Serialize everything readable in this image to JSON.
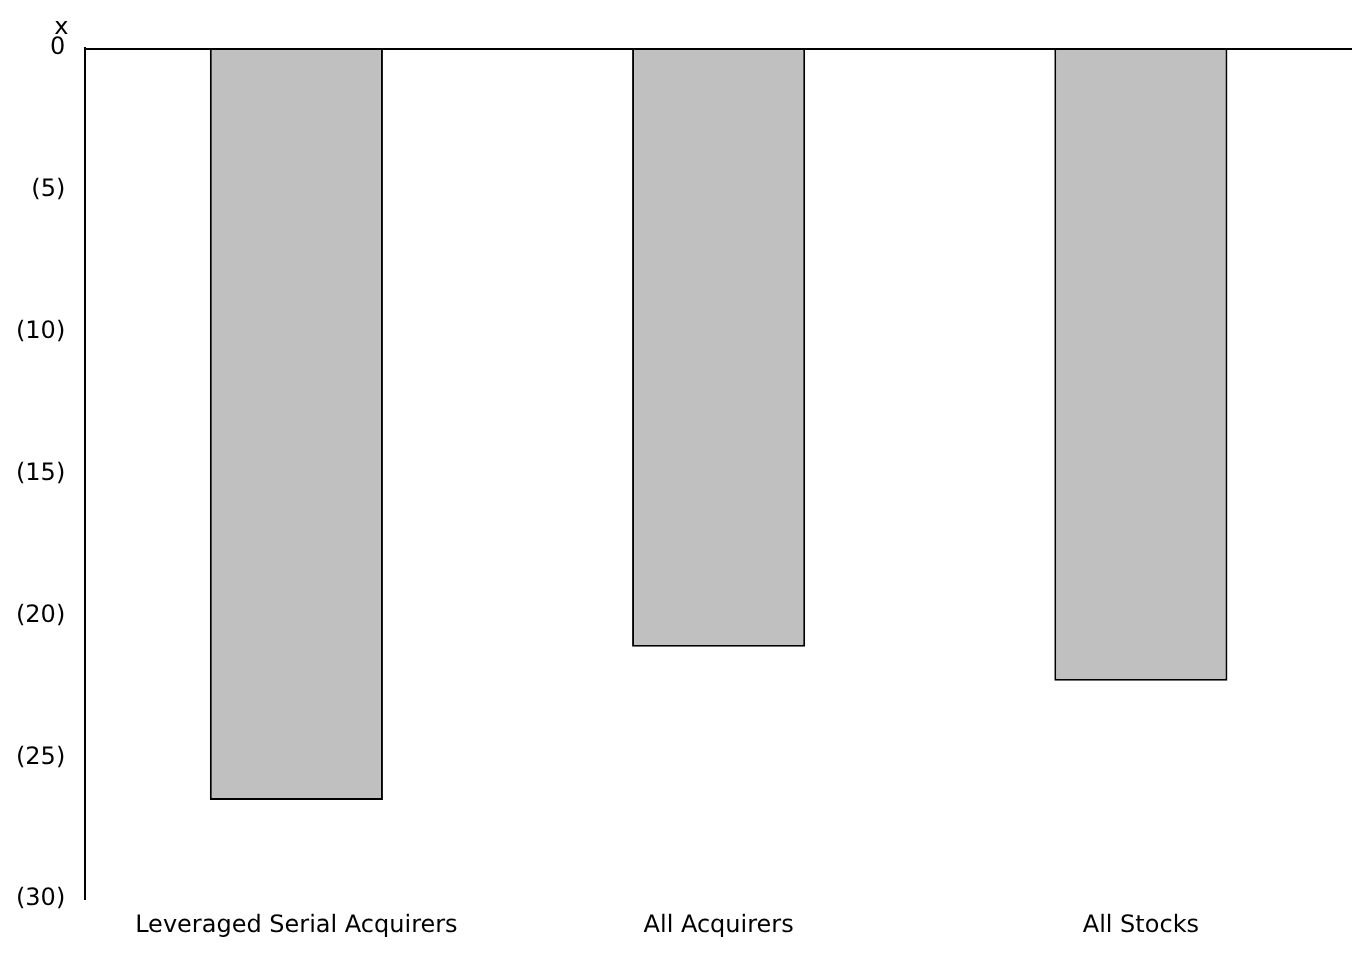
{
  "chart_data": {
    "type": "bar",
    "ylabel": "x",
    "categories": [
      "Leveraged Serial Acquirers",
      "All Acquirers",
      "All Stocks"
    ],
    "values": [
      -26.5,
      -21.1,
      -22.3
    ],
    "color": "#c0c0c0",
    "ylim": [
      -30,
      0
    ],
    "yticks": [
      0,
      {
        "value": -5,
        "label": "(5)"
      },
      {
        "value": -10,
        "label": "(10)"
      },
      {
        "value": -15,
        "label": "(15)"
      },
      {
        "value": -20,
        "label": "(20)"
      },
      {
        "value": -25,
        "label": "(25)"
      },
      {
        "value": -30,
        "label": "(30)"
      }
    ],
    "grid": false,
    "legend": false
  }
}
